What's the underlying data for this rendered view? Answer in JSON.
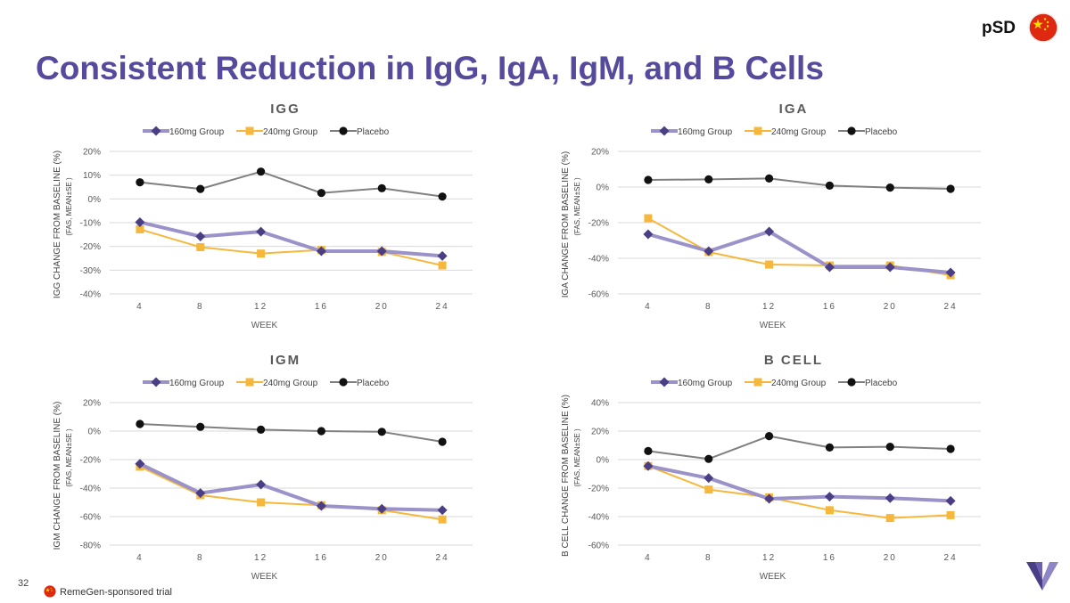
{
  "header": {
    "title": "Consistent Reduction in IgG, IgA, IgM, and B Cells",
    "tag": "pSD"
  },
  "footer": {
    "page_number": "32",
    "note": "RemeGen-sponsored trial"
  },
  "colors": {
    "title": "#564a9c",
    "series_160": "#9a92c8",
    "marker_160": "#4a3f85",
    "series_240": "#f5b83d",
    "placebo": "#808080",
    "marker_placebo": "#111111",
    "flag_red": "#de2910",
    "flag_star": "#ffde00"
  },
  "icons": {
    "flag": "china-flag-icon",
    "logo": "remegen-v-logo-icon"
  },
  "chart_data": [
    {
      "type": "line",
      "title": "IGG",
      "xlabel": "WEEK",
      "ylabel": "IGG CHANGE FROM BASELINE (%)",
      "ylabel_sub": "(FAS, MEAN±SE )",
      "categories": [
        "4",
        "8",
        "12",
        "16",
        "20",
        "24"
      ],
      "ylim": [
        -40,
        20
      ],
      "yticks": [
        20,
        10,
        0,
        -10,
        -20,
        -30,
        -40
      ],
      "ytick_labels": [
        "20%",
        "10%",
        "0%",
        "-10%",
        "-20%",
        "-30%",
        "-40%"
      ],
      "grid": true,
      "legend": "top",
      "series": [
        {
          "name": "160mg Group",
          "values": [
            -9.8,
            -15.8,
            -13.8,
            -22,
            -22,
            -24
          ]
        },
        {
          "name": "240mg Group",
          "values": [
            -12.8,
            -20.3,
            -23,
            -21.5,
            -22.3,
            -28
          ]
        },
        {
          "name": "Placebo",
          "values": [
            7,
            4.2,
            11.5,
            2.5,
            4.5,
            1
          ]
        }
      ]
    },
    {
      "type": "line",
      "title": "IGA",
      "xlabel": "WEEK",
      "ylabel": "IGA CHANGE FROM BASELINE (%)",
      "ylabel_sub": "(FAS, MEAN±SE )",
      "categories": [
        "4",
        "8",
        "12",
        "16",
        "20",
        "24"
      ],
      "ylim": [
        -60,
        20
      ],
      "yticks": [
        20,
        0,
        -20,
        -40,
        -60
      ],
      "ytick_labels": [
        "20%",
        "0%",
        "-20%",
        "-40%",
        "-60%"
      ],
      "grid": true,
      "legend": "top",
      "series": [
        {
          "name": "160mg Group",
          "values": [
            -26.5,
            -36,
            -25,
            -45,
            -45,
            -48
          ]
        },
        {
          "name": "240mg Group",
          "values": [
            -17.5,
            -36.5,
            -43.5,
            -44,
            -44,
            -49.5
          ]
        },
        {
          "name": "Placebo",
          "values": [
            4,
            4.3,
            4.8,
            0.8,
            -0.3,
            -1
          ]
        }
      ]
    },
    {
      "type": "line",
      "title": "IGM",
      "xlabel": "WEEK",
      "ylabel": "IGM CHANGE FROM BASELINE (%)",
      "ylabel_sub": "(FAS, MEAN±SE )",
      "categories": [
        "4",
        "8",
        "12",
        "16",
        "20",
        "24"
      ],
      "ylim": [
        -80,
        20
      ],
      "yticks": [
        20,
        0,
        -20,
        -40,
        -60,
        -80
      ],
      "ytick_labels": [
        "20%",
        "0%",
        "-20%",
        "-40%",
        "-60%",
        "-80%"
      ],
      "grid": true,
      "legend": "top",
      "series": [
        {
          "name": "160mg Group",
          "values": [
            -23,
            -43.5,
            -37.5,
            -52.5,
            -54.5,
            -55.5
          ]
        },
        {
          "name": "240mg Group",
          "values": [
            -25,
            -45,
            -50,
            -52,
            -55.5,
            -62
          ]
        },
        {
          "name": "Placebo",
          "values": [
            5,
            3,
            1,
            0,
            -0.5,
            -7.5
          ]
        }
      ]
    },
    {
      "type": "line",
      "title": "B CELL",
      "xlabel": "WEEK",
      "ylabel": "B CELL CHANGE FROM BASELINE (%)",
      "ylabel_sub": "(FAS, MEAN±SE )",
      "categories": [
        "4",
        "8",
        "12",
        "16",
        "20",
        "24"
      ],
      "ylim": [
        -60,
        40
      ],
      "yticks": [
        40,
        20,
        0,
        -20,
        -40,
        -60
      ],
      "ytick_labels": [
        "40%",
        "20%",
        "0%",
        "-20%",
        "-40%",
        "-60%"
      ],
      "grid": true,
      "legend": "top",
      "series": [
        {
          "name": "160mg Group",
          "values": [
            -4.5,
            -13,
            -27.5,
            -26,
            -27,
            -29
          ]
        },
        {
          "name": "240mg Group",
          "values": [
            -4.5,
            -21,
            -26.5,
            -35.5,
            -41,
            -39
          ]
        },
        {
          "name": "Placebo",
          "values": [
            6,
            0.5,
            16.5,
            8.5,
            9,
            7.5
          ]
        }
      ]
    }
  ]
}
